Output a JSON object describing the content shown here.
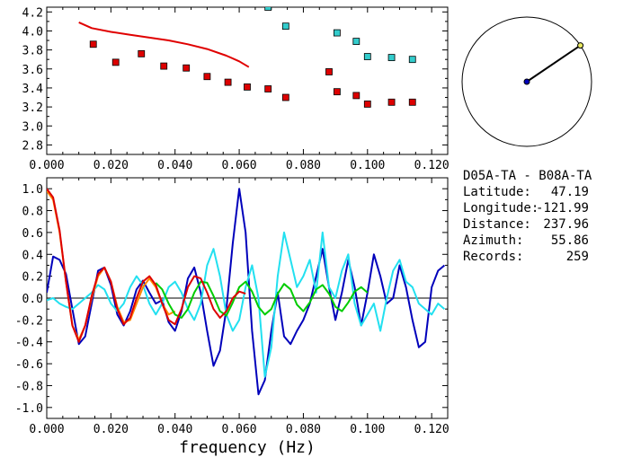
{
  "info": {
    "title": "D05A-TA  - B08A-TA",
    "rows": [
      {
        "label": "Latitude:",
        "value": "47.19"
      },
      {
        "label": "Longitude:",
        "value": "-121.99"
      },
      {
        "label": "Distance:",
        "value": "237.96"
      },
      {
        "label": "Azimuth:",
        "value": "55.86"
      },
      {
        "label": "Records:",
        "value": "259"
      }
    ]
  },
  "compass": {
    "azimuth_deg": 55.86
  },
  "chart_data": [
    {
      "type": "scatter",
      "xlim": [
        0.0,
        0.125
      ],
      "ylim": [
        2.7,
        4.25
      ],
      "xticks": [
        "0.000",
        "0.020",
        "0.040",
        "0.060",
        "0.080",
        "0.100",
        "0.120"
      ],
      "yticks": [
        "2.8",
        "3.0",
        "3.2",
        "3.4",
        "3.6",
        "3.8",
        "4.0",
        "4.2"
      ],
      "series": [
        {
          "type": "line",
          "color": "#e00000",
          "x": [
            0.01,
            0.014,
            0.02,
            0.026,
            0.032,
            0.038,
            0.044,
            0.05,
            0.056,
            0.06,
            0.063
          ],
          "y": [
            4.09,
            4.03,
            3.99,
            3.96,
            3.93,
            3.9,
            3.86,
            3.81,
            3.74,
            3.68,
            3.62
          ]
        },
        {
          "type": "scatter",
          "color": "#dd0000",
          "x": [
            0.0145,
            0.0215,
            0.0295,
            0.0365,
            0.0435,
            0.05,
            0.0565,
            0.0625,
            0.069,
            0.0745,
            0.088,
            0.0905,
            0.0965,
            0.1,
            0.1075,
            0.114
          ],
          "y": [
            3.86,
            3.67,
            3.76,
            3.63,
            3.61,
            3.52,
            3.46,
            3.41,
            3.39,
            3.3,
            3.57,
            3.36,
            3.32,
            3.23,
            3.25,
            3.25
          ]
        },
        {
          "type": "scatter",
          "color": "#33cccc",
          "x": [
            0.069,
            0.0745,
            0.0905,
            0.0965,
            0.1,
            0.1075,
            0.114
          ],
          "y": [
            4.25,
            4.05,
            3.98,
            3.89,
            3.73,
            3.72,
            3.7
          ]
        }
      ]
    },
    {
      "type": "line",
      "xlabel": "frequency (Hz)",
      "xlim": [
        0.0,
        0.125
      ],
      "ylim": [
        -1.1,
        1.1
      ],
      "xticks": [
        "0.000",
        "0.020",
        "0.040",
        "0.060",
        "0.080",
        "0.100",
        "0.120"
      ],
      "yticks": [
        "1.0",
        "0.8",
        "0.6",
        "0.4",
        "0.2",
        "0.0",
        "-0.2",
        "-0.4",
        "-0.6",
        "-0.8",
        "-1.0"
      ],
      "series": [
        {
          "color": "#0000bb",
          "x": [
            0.0,
            0.002,
            0.004,
            0.006,
            0.008,
            0.01,
            0.012,
            0.014,
            0.016,
            0.018,
            0.02,
            0.022,
            0.024,
            0.026,
            0.028,
            0.03,
            0.032,
            0.034,
            0.036,
            0.038,
            0.04,
            0.042,
            0.044,
            0.046,
            0.048,
            0.05,
            0.052,
            0.054,
            0.056,
            0.058,
            0.06,
            0.062,
            0.064,
            0.066,
            0.068,
            0.07,
            0.072,
            0.074,
            0.076,
            0.078,
            0.08,
            0.082,
            0.084,
            0.086,
            0.088,
            0.09,
            0.092,
            0.094,
            0.096,
            0.098,
            0.1,
            0.102,
            0.104,
            0.106,
            0.108,
            0.11,
            0.112,
            0.114,
            0.116,
            0.118,
            0.12,
            0.122,
            0.124
          ],
          "y": [
            0.05,
            0.38,
            0.35,
            0.22,
            -0.1,
            -0.42,
            -0.35,
            -0.05,
            0.25,
            0.28,
            0.12,
            -0.15,
            -0.25,
            -0.12,
            0.08,
            0.16,
            0.05,
            -0.05,
            -0.02,
            -0.22,
            -0.3,
            -0.12,
            0.18,
            0.28,
            0.05,
            -0.3,
            -0.62,
            -0.48,
            -0.1,
            0.5,
            1.0,
            0.6,
            -0.3,
            -0.88,
            -0.75,
            -0.3,
            0.05,
            -0.35,
            -0.42,
            -0.3,
            -0.2,
            -0.05,
            0.2,
            0.45,
            0.1,
            -0.2,
            0.05,
            0.35,
            0.1,
            -0.25,
            0.05,
            0.4,
            0.2,
            -0.05,
            0.0,
            0.3,
            0.1,
            -0.2,
            -0.45,
            -0.4,
            0.1,
            0.25,
            0.3
          ]
        },
        {
          "color": "#22e0f0",
          "x": [
            0.0,
            0.002,
            0.004,
            0.006,
            0.008,
            0.01,
            0.012,
            0.014,
            0.016,
            0.018,
            0.02,
            0.022,
            0.024,
            0.026,
            0.028,
            0.03,
            0.032,
            0.034,
            0.036,
            0.038,
            0.04,
            0.042,
            0.044,
            0.046,
            0.048,
            0.05,
            0.052,
            0.054,
            0.056,
            0.058,
            0.06,
            0.062,
            0.064,
            0.066,
            0.068,
            0.07,
            0.072,
            0.074,
            0.076,
            0.078,
            0.08,
            0.082,
            0.084,
            0.086,
            0.088,
            0.09,
            0.092,
            0.094,
            0.096,
            0.098,
            0.1,
            0.102,
            0.104,
            0.106,
            0.108,
            0.11,
            0.112,
            0.114,
            0.116,
            0.118,
            0.12,
            0.122,
            0.124
          ],
          "y": [
            -0.02,
            0.0,
            -0.05,
            -0.08,
            -0.1,
            -0.05,
            0.0,
            0.05,
            0.12,
            0.08,
            -0.05,
            -0.12,
            -0.05,
            0.1,
            0.2,
            0.12,
            -0.05,
            -0.15,
            -0.05,
            0.1,
            0.15,
            0.05,
            -0.1,
            -0.2,
            -0.05,
            0.3,
            0.45,
            0.2,
            -0.15,
            -0.3,
            -0.2,
            0.1,
            0.3,
            0.0,
            -0.72,
            -0.45,
            0.2,
            0.6,
            0.35,
            0.1,
            0.2,
            0.35,
            0.05,
            0.6,
            0.1,
            0.0,
            0.25,
            0.4,
            -0.05,
            -0.25,
            -0.15,
            -0.05,
            -0.3,
            0.0,
            0.25,
            0.35,
            0.15,
            0.1,
            -0.05,
            -0.1,
            -0.15,
            -0.05,
            -0.1
          ]
        },
        {
          "color": "#ff8800",
          "x": [
            0.0,
            0.002,
            0.004,
            0.006,
            0.008,
            0.01,
            0.012,
            0.014,
            0.016,
            0.018,
            0.02,
            0.022,
            0.024,
            0.026,
            0.028,
            0.03,
            0.032,
            0.034,
            0.036,
            0.038,
            0.04
          ],
          "y": [
            0.98,
            0.9,
            0.6,
            0.15,
            -0.25,
            -0.38,
            -0.25,
            0.0,
            0.2,
            0.28,
            0.15,
            -0.08,
            -0.22,
            -0.2,
            -0.05,
            0.1,
            0.18,
            0.1,
            -0.05,
            -0.15,
            -0.12
          ]
        },
        {
          "color": "#00cc00",
          "x": [
            0.034,
            0.036,
            0.038,
            0.04,
            0.042,
            0.044,
            0.046,
            0.048,
            0.05,
            0.052,
            0.054,
            0.056,
            0.058,
            0.06,
            0.062,
            0.064,
            0.066,
            0.068,
            0.07,
            0.072,
            0.074,
            0.076,
            0.078,
            0.08,
            0.082,
            0.084,
            0.086,
            0.088,
            0.09,
            0.092,
            0.094,
            0.096,
            0.098,
            0.1
          ],
          "y": [
            0.14,
            0.08,
            -0.05,
            -0.15,
            -0.18,
            -0.1,
            0.05,
            0.15,
            0.14,
            0.02,
            -0.12,
            -0.16,
            -0.04,
            0.1,
            0.15,
            0.06,
            -0.08,
            -0.15,
            -0.1,
            0.04,
            0.13,
            0.08,
            -0.06,
            -0.12,
            -0.04,
            0.08,
            0.12,
            0.04,
            -0.08,
            -0.12,
            -0.04,
            0.06,
            0.1,
            0.05
          ]
        },
        {
          "color": "#dd0000",
          "x": [
            0.0,
            0.002,
            0.004,
            0.006,
            0.008,
            0.01,
            0.012,
            0.014,
            0.016,
            0.018,
            0.02,
            0.022,
            0.024,
            0.026,
            0.028,
            0.03,
            0.032,
            0.034,
            0.036,
            0.038,
            0.04,
            0.042,
            0.044,
            0.046,
            0.048,
            0.05,
            0.052,
            0.054,
            0.056,
            0.058,
            0.06,
            0.062
          ],
          "y": [
            1.0,
            0.92,
            0.62,
            0.15,
            -0.25,
            -0.4,
            -0.25,
            0.02,
            0.22,
            0.28,
            0.15,
            -0.1,
            -0.24,
            -0.18,
            0.0,
            0.15,
            0.2,
            0.12,
            -0.05,
            -0.2,
            -0.24,
            -0.1,
            0.1,
            0.2,
            0.18,
            0.05,
            -0.1,
            -0.18,
            -0.12,
            0.0,
            0.06,
            0.04
          ]
        }
      ]
    }
  ]
}
